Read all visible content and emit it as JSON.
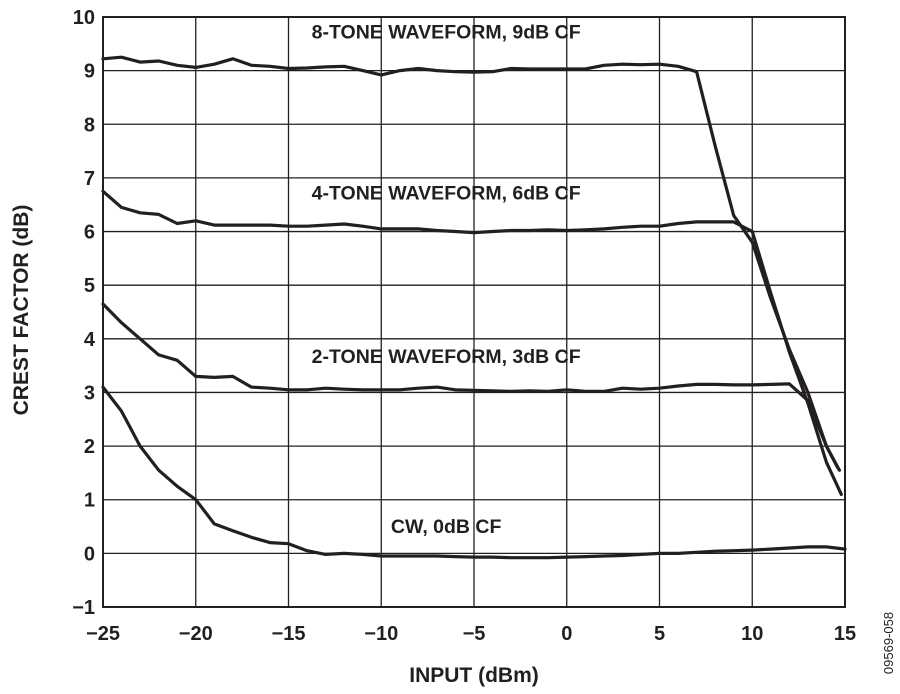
{
  "chart_data": {
    "type": "line",
    "xlabel": "INPUT (dBm)",
    "ylabel": "CREST FACTOR (dB)",
    "xlim": [
      -25,
      15
    ],
    "ylim": [
      -1,
      10
    ],
    "xticks": [
      -25,
      -20,
      -15,
      -10,
      -5,
      0,
      5,
      10,
      15
    ],
    "yticks": [
      -1,
      0,
      1,
      2,
      3,
      4,
      5,
      6,
      7,
      8,
      9,
      10
    ],
    "xtick_labels": [
      "−25",
      "−20",
      "−15",
      "−10",
      "−5",
      "0",
      "5",
      "10",
      "15"
    ],
    "ytick_labels": [
      "−1",
      "0",
      "1",
      "2",
      "3",
      "4",
      "5",
      "6",
      "7",
      "8",
      "9",
      "10"
    ],
    "grid": true,
    "figure_id": "09569-058",
    "series": [
      {
        "name": "8-TONE WAVEFORM, 9dB CF",
        "x": [
          -25,
          -24,
          -23,
          -22,
          -21,
          -20,
          -19,
          -18,
          -17,
          -16,
          -15,
          -14,
          -13,
          -12,
          -11,
          -10,
          -9,
          -8,
          -7,
          -6,
          -5,
          -4,
          -3,
          -2,
          -1,
          0,
          1,
          2,
          3,
          4,
          5,
          6,
          7,
          8,
          9,
          10,
          11,
          12,
          13,
          14,
          14.6
        ],
        "y": [
          9.22,
          9.25,
          9.16,
          9.18,
          9.1,
          9.06,
          9.12,
          9.22,
          9.1,
          9.08,
          9.04,
          9.05,
          9.07,
          9.08,
          9.0,
          8.92,
          9.0,
          9.04,
          9.0,
          8.98,
          8.97,
          8.98,
          9.04,
          9.03,
          9.03,
          9.03,
          9.03,
          9.1,
          9.12,
          9.11,
          9.12,
          9.08,
          8.98,
          7.6,
          6.3,
          5.8,
          4.75,
          3.8,
          3.0,
          2.0,
          1.6
        ],
        "label_anchor": [
          -6.5,
          9.6
        ]
      },
      {
        "name": "4-TONE WAVEFORM, 6dB CF",
        "x": [
          -25,
          -24,
          -23,
          -22,
          -21,
          -20,
          -19,
          -18,
          -17,
          -16,
          -15,
          -14,
          -13,
          -12,
          -11,
          -10,
          -9,
          -8,
          -7,
          -6,
          -5,
          -4,
          -3,
          -2,
          -1,
          0,
          1,
          2,
          3,
          4,
          5,
          6,
          7,
          8,
          9,
          10,
          11,
          12,
          13,
          14,
          14.8
        ],
        "y": [
          6.75,
          6.45,
          6.35,
          6.32,
          6.15,
          6.2,
          6.12,
          6.12,
          6.12,
          6.12,
          6.1,
          6.1,
          6.12,
          6.14,
          6.1,
          6.05,
          6.05,
          6.05,
          6.02,
          6.0,
          5.98,
          6.0,
          6.02,
          6.02,
          6.03,
          6.02,
          6.03,
          6.05,
          6.08,
          6.1,
          6.1,
          6.15,
          6.18,
          6.18,
          6.18,
          6.0,
          4.85,
          3.75,
          2.8,
          1.7,
          1.1
        ],
        "label_anchor": [
          -6.5,
          6.6
        ]
      },
      {
        "name": "2-TONE WAVEFORM, 3dB CF",
        "x": [
          -25,
          -24,
          -23,
          -22,
          -21,
          -20,
          -19,
          -18,
          -17,
          -16,
          -15,
          -14,
          -13,
          -12,
          -11,
          -10,
          -9,
          -8,
          -7,
          -6,
          -5,
          -4,
          -3,
          -2,
          -1,
          0,
          1,
          2,
          3,
          4,
          5,
          6,
          7,
          8,
          9,
          10,
          11,
          12,
          13,
          14,
          14.7
        ],
        "y": [
          4.65,
          4.3,
          4.0,
          3.7,
          3.6,
          3.3,
          3.28,
          3.3,
          3.1,
          3.08,
          3.05,
          3.05,
          3.08,
          3.06,
          3.05,
          3.05,
          3.05,
          3.08,
          3.1,
          3.05,
          3.04,
          3.03,
          3.02,
          3.03,
          3.02,
          3.05,
          3.02,
          3.02,
          3.08,
          3.06,
          3.08,
          3.12,
          3.15,
          3.15,
          3.14,
          3.14,
          3.15,
          3.16,
          2.85,
          2.0,
          1.55
        ],
        "label_anchor": [
          -6.5,
          3.55
        ]
      },
      {
        "name": "CW, 0dB CF",
        "x": [
          -25,
          -24,
          -23,
          -22,
          -21,
          -20,
          -19,
          -18,
          -17,
          -16,
          -15,
          -14,
          -13,
          -12,
          -11,
          -10,
          -9,
          -8,
          -7,
          -6,
          -5,
          -4,
          -3,
          -2,
          -1,
          0,
          1,
          2,
          3,
          4,
          5,
          6,
          7,
          8,
          9,
          10,
          11,
          12,
          13,
          14,
          15
        ],
        "y": [
          3.1,
          2.65,
          2.0,
          1.55,
          1.25,
          1.0,
          0.55,
          0.42,
          0.3,
          0.2,
          0.18,
          0.05,
          -0.02,
          0.0,
          -0.02,
          -0.05,
          -0.05,
          -0.05,
          -0.05,
          -0.06,
          -0.07,
          -0.07,
          -0.08,
          -0.08,
          -0.08,
          -0.07,
          -0.06,
          -0.05,
          -0.04,
          -0.02,
          0.0,
          0.0,
          0.02,
          0.04,
          0.05,
          0.06,
          0.08,
          0.1,
          0.12,
          0.12,
          0.08
        ],
        "label_anchor": [
          -6.5,
          0.38
        ]
      }
    ]
  }
}
